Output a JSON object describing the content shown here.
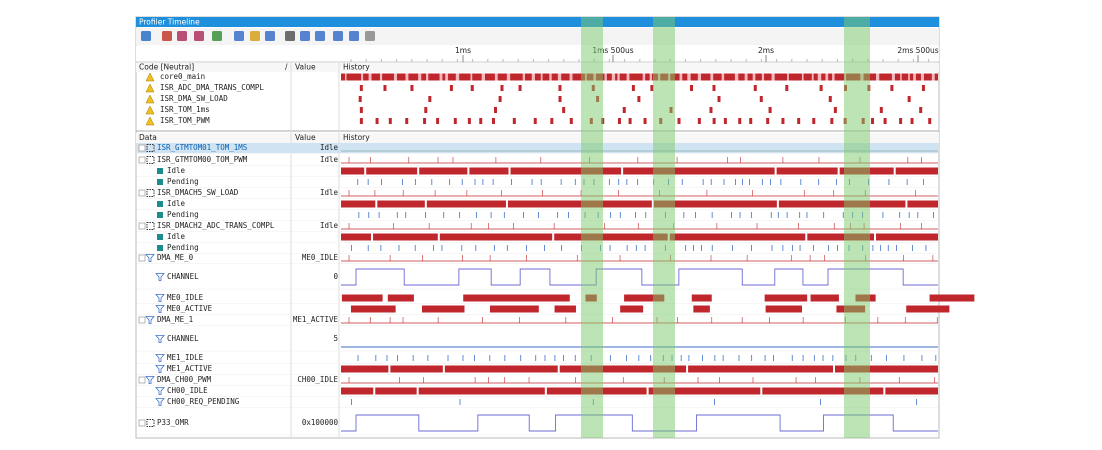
{
  "window": {
    "title": "Profiler Timeline"
  },
  "ruler": {
    "labels": [
      "1ms",
      "1ms 500us",
      "2ms",
      "2ms 500us"
    ]
  },
  "code_panel": {
    "headers": [
      "Code [Neutral]",
      "/",
      "Value",
      "History"
    ],
    "rows": [
      "core0_main",
      "ISR_ADC_DMA_TRANS_COMPL",
      "ISR_DMA_SW_LOAD",
      "ISR_TOM_1ms",
      "ISR_TOM_PWM"
    ]
  },
  "data_panel": {
    "headers": [
      "Data",
      "Value",
      "History"
    ],
    "rows": [
      {
        "label": "ISR_GTMTOM01_TOM_1MS",
        "value": "Idle"
      },
      {
        "label": "ISR_GTMTOM00_TOM_PWM",
        "value": "Idle"
      },
      {
        "label": "Idle"
      },
      {
        "label": "Pending"
      },
      {
        "label": "ISR_DMACH5_SW_LOAD",
        "value": "Idle"
      },
      {
        "label": "Idle"
      },
      {
        "label": "Pending"
      },
      {
        "label": "ISR_DMACH2_ADC_TRANS_COMPL",
        "value": "Idle"
      },
      {
        "label": "Idle"
      },
      {
        "label": "Pending"
      },
      {
        "label": "DMA_ME_0",
        "value": "ME0_IDLE"
      },
      {
        "label": "CHANNEL",
        "value": "0"
      },
      {
        "label": "ME0_IDLE"
      },
      {
        "label": "ME0_ACTIVE"
      },
      {
        "label": "DMA_ME_1",
        "value": "ME1_ACTIVE"
      },
      {
        "label": "CHANNEL",
        "value": "5"
      },
      {
        "label": "ME1_IDLE"
      },
      {
        "label": "ME1_ACTIVE"
      },
      {
        "label": "DMA_CH00_PWM",
        "value": "CH00_IDLE"
      },
      {
        "label": "CH00_IDLE"
      },
      {
        "label": "CH00_REQ_PENDING"
      },
      {
        "label": "P33_OMR",
        "value": "0x100000"
      }
    ]
  }
}
